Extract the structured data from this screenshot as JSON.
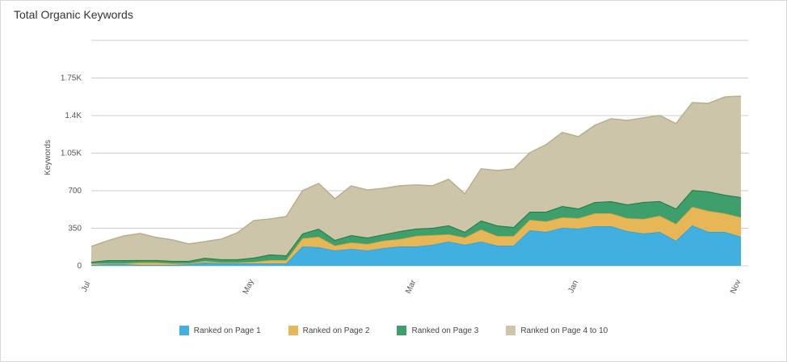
{
  "title": "Total Organic Keywords",
  "chart_data": {
    "type": "area",
    "stacked": true,
    "title": "Total Organic Keywords",
    "xlabel": "",
    "ylabel": "Keywords",
    "ylim": [
      0,
      2100
    ],
    "y_ticks": [
      0,
      350,
      700,
      1050,
      1400,
      1750
    ],
    "y_tick_labels": [
      "0",
      "350",
      "700",
      "1.05K",
      "1.4K",
      "1.75K"
    ],
    "x_tick_labels": [
      "Jul",
      "May",
      "Mar",
      "Jan",
      "Nov"
    ],
    "x_tick_every": 10,
    "grid": true,
    "legend_position": "bottom",
    "series": [
      {
        "name": "Ranked on Page 1",
        "color": "#41b0e0",
        "values": [
          8,
          15,
          15,
          8,
          8,
          8,
          15,
          30,
          23,
          23,
          23,
          23,
          23,
          181,
          173,
          143,
          158,
          143,
          166,
          181,
          181,
          196,
          226,
          196,
          226,
          188,
          188,
          331,
          316,
          354,
          346,
          369,
          369,
          324,
          301,
          316,
          233,
          376,
          316,
          316,
          271
        ]
      },
      {
        "name": "Ranked on Page 2",
        "color": "#e6b657",
        "values": [
          15,
          8,
          8,
          23,
          23,
          15,
          8,
          15,
          8,
          8,
          15,
          30,
          30,
          75,
          98,
          45,
          60,
          60,
          68,
          68,
          98,
          90,
          68,
          68,
          113,
          90,
          90,
          98,
          98,
          98,
          98,
          120,
          120,
          120,
          136,
          151,
          158,
          173,
          196,
          173,
          181
        ]
      },
      {
        "name": "Ranked on Page 3",
        "color": "#3e9f6c",
        "values": [
          15,
          30,
          30,
          23,
          23,
          23,
          23,
          30,
          30,
          30,
          38,
          53,
          45,
          45,
          75,
          53,
          68,
          60,
          60,
          75,
          68,
          68,
          83,
          53,
          83,
          98,
          83,
          75,
          90,
          105,
          90,
          105,
          113,
          128,
          158,
          136,
          143,
          158,
          181,
          173,
          188
        ]
      },
      {
        "name": "Ranked on Page 4 to 10",
        "color": "#cdc5a9",
        "values": [
          143,
          181,
          226,
          248,
          211,
          196,
          158,
          151,
          188,
          248,
          346,
          331,
          361,
          399,
          422,
          384,
          459,
          444,
          429,
          422,
          407,
          392,
          429,
          354,
          482,
          512,
          542,
          550,
          625,
          685,
          670,
          715,
          768,
          783,
          783,
          798,
          791,
          813,
          821,
          911,
          941
        ]
      }
    ]
  }
}
